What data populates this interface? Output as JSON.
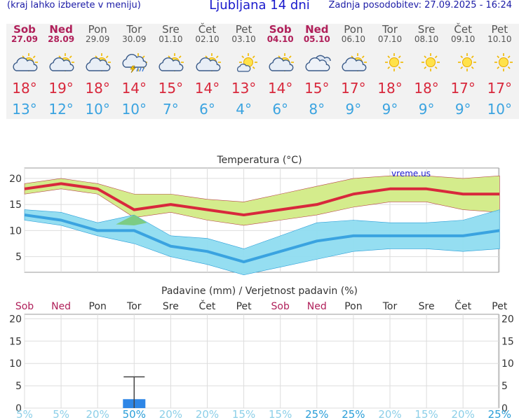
{
  "header": {
    "left_text": "(kraj lahko izberete v meniju)",
    "title": "Ljubljana 14 dni",
    "update_text": "Zadnja posodobitev: 27.09.2025 - 16:24"
  },
  "days": [
    {
      "name": "Sob",
      "date": "27.09",
      "weekend": true,
      "icon": "partly-cloudy-icon",
      "tmax": "18°",
      "tmin": "13°"
    },
    {
      "name": "Ned",
      "date": "28.09",
      "weekend": true,
      "icon": "partly-cloudy-icon",
      "tmax": "19°",
      "tmin": "12°"
    },
    {
      "name": "Pon",
      "date": "29.09",
      "weekend": false,
      "icon": "partly-cloudy-icon",
      "tmax": "18°",
      "tmin": "10°"
    },
    {
      "name": "Tor",
      "date": "30.09",
      "weekend": false,
      "icon": "thunderstorm-rain-icon",
      "tmax": "14°",
      "tmin": "10°"
    },
    {
      "name": "Sre",
      "date": "01.10",
      "weekend": false,
      "icon": "partly-cloudy-icon",
      "tmax": "15°",
      "tmin": "7°"
    },
    {
      "name": "Čet",
      "date": "02.10",
      "weekend": false,
      "icon": "partly-cloudy-icon",
      "tmax": "14°",
      "tmin": "6°"
    },
    {
      "name": "Pet",
      "date": "03.10",
      "weekend": false,
      "icon": "mostly-sunny-icon",
      "tmax": "13°",
      "tmin": "4°"
    },
    {
      "name": "Sob",
      "date": "04.10",
      "weekend": true,
      "icon": "partly-cloudy-icon",
      "tmax": "14°",
      "tmin": "6°"
    },
    {
      "name": "Ned",
      "date": "05.10",
      "weekend": true,
      "icon": "cloudy-icon",
      "tmax": "15°",
      "tmin": "8°"
    },
    {
      "name": "Pon",
      "date": "06.10",
      "weekend": false,
      "icon": "partly-cloudy-icon",
      "tmax": "17°",
      "tmin": "9°"
    },
    {
      "name": "Tor",
      "date": "07.10",
      "weekend": false,
      "icon": "sunny-icon",
      "tmax": "18°",
      "tmin": "9°"
    },
    {
      "name": "Sre",
      "date": "08.10",
      "weekend": false,
      "icon": "sunny-icon",
      "tmax": "18°",
      "tmin": "9°"
    },
    {
      "name": "Čet",
      "date": "09.10",
      "weekend": false,
      "icon": "sunny-icon",
      "tmax": "17°",
      "tmin": "9°"
    },
    {
      "name": "Pet",
      "date": "10.10",
      "weekend": false,
      "icon": "sunny-icon",
      "tmax": "17°",
      "tmin": "10°"
    }
  ],
  "colors": {
    "max_line": "#d8283c",
    "min_line": "#3aa3e0",
    "max_band": "#d4ec8c",
    "min_band": "#8fdcf0",
    "overlap_band": "#7ccc84",
    "weekend_text": "#b0205a",
    "precip_bar": "#2e86e6",
    "prob_text": "#8ccfe8",
    "prob_text_bold": "#2a9ed8"
  },
  "chart_data": [
    {
      "type": "line",
      "title": "Temperatura (°C)",
      "watermark": "vreme.us",
      "ylim": [
        2,
        22
      ],
      "yticks": [
        5,
        10,
        15,
        20
      ],
      "grid": true,
      "series": [
        {
          "name": "max",
          "values": [
            18,
            19,
            18,
            14,
            15,
            14,
            13,
            14,
            15,
            17,
            18,
            18,
            17,
            17
          ]
        },
        {
          "name": "max_band_upper",
          "values": [
            19,
            20,
            19,
            17,
            17,
            16,
            15.5,
            17,
            18.5,
            20,
            20.5,
            20.5,
            20,
            20.5
          ]
        },
        {
          "name": "max_band_lower",
          "values": [
            17,
            18,
            17,
            12.5,
            13.5,
            12,
            11,
            12,
            13,
            14.5,
            15.5,
            15.5,
            14,
            13.5
          ]
        },
        {
          "name": "min",
          "values": [
            13,
            12,
            10,
            10,
            7,
            6,
            4,
            6,
            8,
            9,
            9,
            9,
            9,
            10
          ]
        },
        {
          "name": "min_band_upper",
          "values": [
            14,
            13.5,
            11.5,
            13,
            9,
            8.5,
            6.5,
            9,
            11.5,
            12,
            11.5,
            11.5,
            12,
            14
          ]
        },
        {
          "name": "min_band_lower",
          "values": [
            12,
            11,
            9,
            7.5,
            5,
            3.5,
            1.5,
            3,
            4.5,
            6,
            6.5,
            6.5,
            6,
            6.5
          ]
        }
      ]
    },
    {
      "type": "bar",
      "title": "Padavine (mm) / Verjetnost padavin (%)",
      "categories": [
        "Sob",
        "Ned",
        "Pon",
        "Tor",
        "Sre",
        "Čet",
        "Pet",
        "Sob",
        "Ned",
        "Pon",
        "Tor",
        "Sre",
        "Čet",
        "Pet"
      ],
      "weekend": [
        true,
        true,
        false,
        false,
        false,
        false,
        false,
        true,
        true,
        false,
        false,
        false,
        false,
        false
      ],
      "values": [
        0,
        0,
        0,
        2,
        0,
        0,
        0,
        0,
        0,
        0,
        0,
        0,
        0,
        0
      ],
      "error_high": [
        0,
        0,
        0,
        7,
        0,
        0,
        0,
        0,
        0,
        0,
        0,
        0,
        0,
        0
      ],
      "probabilities": [
        "5%",
        "5%",
        "20%",
        "50%",
        "20%",
        "20%",
        "15%",
        "15%",
        "25%",
        "25%",
        "20%",
        "15%",
        "20%",
        "25%"
      ],
      "prob_bold": [
        false,
        false,
        false,
        true,
        false,
        false,
        false,
        false,
        true,
        true,
        false,
        false,
        false,
        true
      ],
      "ylim": [
        0,
        21
      ],
      "yticks": [
        0,
        5,
        10,
        15,
        20
      ],
      "grid": true
    }
  ]
}
